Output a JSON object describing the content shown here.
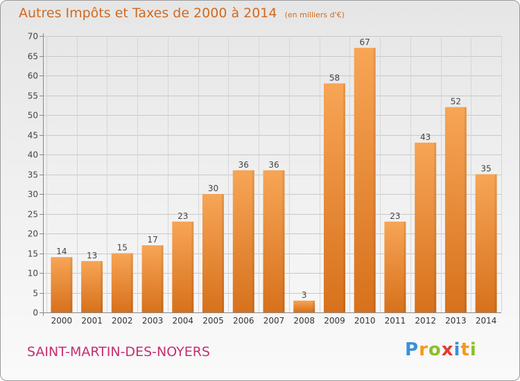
{
  "title": "Autres Impôts et Taxes de 2000 à 2014",
  "unit": "(en milliers d'€)",
  "commune": "SAINT-MARTIN-DES-NOYERS",
  "brand": {
    "letters": [
      "P",
      "r",
      "o",
      "x",
      "i",
      "t",
      "i"
    ],
    "colors": [
      "#3a8fd8",
      "#f29a1d",
      "#8cbf2a",
      "#e53a2b",
      "#3a8fd8",
      "#f29a1d",
      "#8cbf2a"
    ]
  },
  "colors": {
    "bar_light": "#f7a556",
    "bar_dark": "#d7711c",
    "title": "#d2691e",
    "commune": "#c62f6e"
  },
  "chart_data": {
    "type": "bar",
    "categories": [
      "2000",
      "2001",
      "2002",
      "2003",
      "2004",
      "2005",
      "2006",
      "2007",
      "2008",
      "2009",
      "2010",
      "2011",
      "2012",
      "2013",
      "2014"
    ],
    "values": [
      14,
      13,
      15,
      17,
      23,
      30,
      36,
      36,
      3,
      58,
      67,
      23,
      43,
      52,
      35
    ],
    "title": "Autres Impôts et Taxes de 2000 à 2014",
    "xlabel": "",
    "ylabel": "",
    "ylim": [
      0,
      70
    ],
    "yticks": [
      0,
      5,
      10,
      15,
      20,
      25,
      30,
      35,
      40,
      45,
      50,
      55,
      60,
      65,
      70
    ],
    "grid": true,
    "data_labels": true
  }
}
